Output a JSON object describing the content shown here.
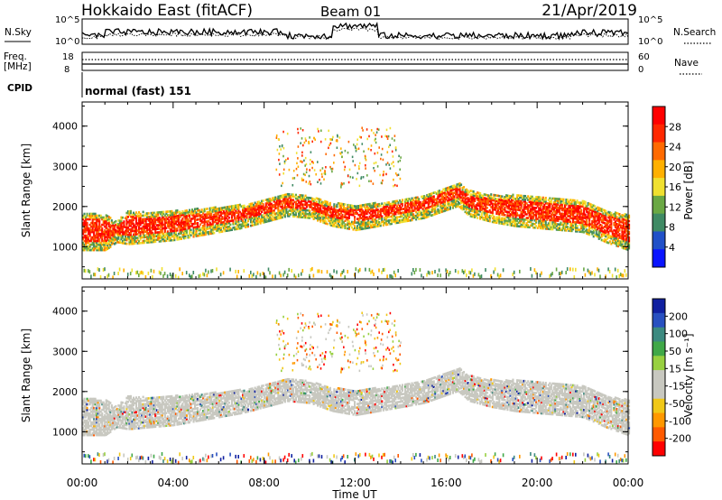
{
  "header": {
    "station": "Hokkaido East (fitACF)",
    "beam": "Beam 01",
    "date": "21/Apr/2019"
  },
  "strip": {
    "nsky_label": "N.Sky",
    "nsearch_label": "N.Search",
    "noise_ticks": [
      "10^5",
      "10^0"
    ],
    "freq_label_1": "Freq.",
    "freq_label_2": "[MHz]",
    "freq_ticks": [
      "18",
      "8"
    ],
    "nave_label": "Nave",
    "nave_ticks": [
      "60",
      "0"
    ],
    "cpid_label": "CPID",
    "cpid_value": "normal (fast) 151"
  },
  "colors": {
    "power_scale": [
      "#0a14ff",
      "#2050c8",
      "#3f8a64",
      "#6aa844",
      "#f0e030",
      "#ffb000",
      "#ff6a00",
      "#ff2800",
      "#ff0000"
    ],
    "velocity_scale": [
      "#ff0000",
      "#ff5a00",
      "#ff9800",
      "#f0c818",
      "#c8c8c0",
      "#c8c8c0",
      "#98d040",
      "#40a848",
      "#3c8a80",
      "#2850c0",
      "#1020a0"
    ]
  },
  "chart_data": [
    {
      "type": "heatmap",
      "name": "power-panel",
      "ylabel": "Slant Range [km]",
      "xlabel": "",
      "y_ticks": [
        "4000",
        "3000",
        "2000",
        "1000"
      ],
      "y_tick_values": [
        4000,
        3000,
        2000,
        1000
      ],
      "ylim": [
        200,
        4600
      ],
      "colorbar_label": "Power [dB]",
      "colorbar_ticks": [
        "28",
        "24",
        "20",
        "16",
        "12",
        "8",
        "4"
      ],
      "colorbar_values": [
        28,
        24,
        20,
        16,
        12,
        8,
        4
      ],
      "colorbar_range": [
        0,
        32
      ],
      "echo_band": {
        "hours": [
          0,
          1,
          1.5,
          2,
          3,
          4,
          5,
          6,
          7,
          8,
          9,
          10,
          11,
          12,
          13,
          14,
          15,
          16,
          16.5,
          17,
          18,
          19,
          20,
          21,
          22,
          23,
          24
        ],
        "bottom_km": [
          1050,
          1050,
          1250,
          1200,
          1250,
          1300,
          1400,
          1500,
          1600,
          1750,
          1900,
          1850,
          1650,
          1550,
          1650,
          1750,
          1850,
          2050,
          2150,
          1900,
          1750,
          1650,
          1600,
          1550,
          1500,
          1250,
          1050
        ],
        "top_km": [
          1750,
          1700,
          1550,
          1800,
          1750,
          1800,
          1850,
          1900,
          1950,
          2100,
          2250,
          2150,
          2000,
          1950,
          2000,
          2100,
          2200,
          2400,
          2500,
          2300,
          2200,
          2200,
          2150,
          2100,
          2050,
          1800,
          1700
        ]
      }
    },
    {
      "type": "heatmap",
      "name": "velocity-panel",
      "ylabel": "Slant Range [km]",
      "xlabel": "Time UT",
      "x_ticks": [
        "00:00",
        "04:00",
        "08:00",
        "12:00",
        "16:00",
        "20:00",
        "00:00"
      ],
      "x_tick_values": [
        0,
        4,
        8,
        12,
        16,
        20,
        24
      ],
      "xlim": [
        0,
        24
      ],
      "y_ticks": [
        "4000",
        "3000",
        "2000",
        "1000"
      ],
      "y_tick_values": [
        4000,
        3000,
        2000,
        1000
      ],
      "ylim": [
        200,
        4600
      ],
      "colorbar_label": "Velocity [m s⁻¹]",
      "colorbar_ticks": [
        "200",
        "100",
        "50",
        "15",
        "-15",
        "-50",
        "-100",
        "-200"
      ],
      "colorbar_range": [
        -250,
        250
      ]
    }
  ]
}
